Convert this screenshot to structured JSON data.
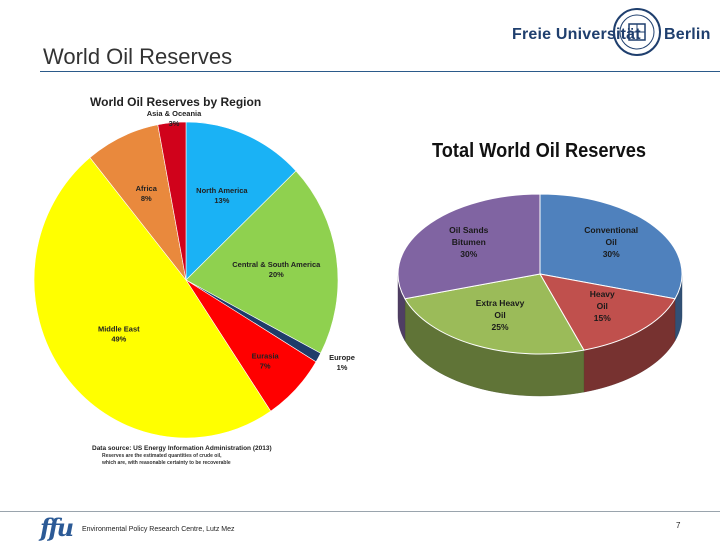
{
  "slide": {
    "title": "World Oil Reserves",
    "footer": "Environmental Policy Research Centre, Lutz Mez",
    "page_number": "7",
    "footer_logo": "ffu"
  },
  "branding": {
    "university_left": "Freie Universität",
    "university_right": "Berlin",
    "brand_color": "#1f3f6e"
  },
  "chart_data": [
    {
      "type": "pie",
      "title": "World Oil Reserves by Region",
      "slices": [
        {
          "label": "North America",
          "value": 13,
          "value_label": "13%",
          "color": "#1ab2f5"
        },
        {
          "label": "Central & South America",
          "value": 20,
          "value_label": "20%",
          "color": "#8fd14f"
        },
        {
          "label": "Europe",
          "value": 1,
          "value_label": "1%",
          "color": "#1f3c6a"
        },
        {
          "label": "Eurasia",
          "value": 7,
          "value_label": "7%",
          "color": "#ff0000"
        },
        {
          "label": "Middle East",
          "value": 49,
          "value_label": "49%",
          "color": "#ffff00"
        },
        {
          "label": "Africa",
          "value": 8,
          "value_label": "8%",
          "color": "#e9893d"
        },
        {
          "label": "Asia & Oceania",
          "value": 3,
          "value_label": "3%",
          "color": "#d0021b"
        }
      ],
      "source": "Data source: US Energy Information Administration (2013)",
      "note_line1": "Reserves are the estimated quantities of crude oil,",
      "note_line2": "which are, with reasonable certainty to be recoverable"
    },
    {
      "type": "pie",
      "title": "Total World Oil Reserves",
      "style": "3d",
      "slices": [
        {
          "label_line1": "Conventional",
          "label_line2": "Oil",
          "value": 30,
          "value_label": "30%",
          "color": "#4f81bd"
        },
        {
          "label_line1": "Heavy",
          "label_line2": "Oil",
          "value": 15,
          "value_label": "15%",
          "color": "#c0504d"
        },
        {
          "label_line1": "Extra Heavy",
          "label_line2": "Oil",
          "value": 25,
          "value_label": "25%",
          "color": "#9bbb59"
        },
        {
          "label_line1": "Oil Sands",
          "label_line2": "Bitumen",
          "value": 30,
          "value_label": "30%",
          "color": "#8064a2"
        }
      ]
    }
  ]
}
